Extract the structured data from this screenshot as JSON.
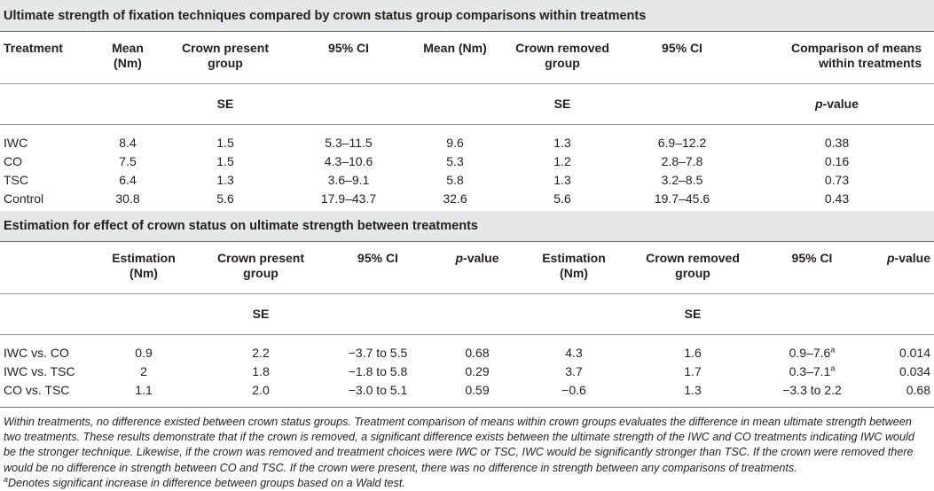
{
  "table1": {
    "title": "Ultimate strength of fixation techniques compared by crown status group comparisons within treatments",
    "headers": {
      "treatment": "Treatment",
      "mean1": "Mean",
      "mean1_unit": "(Nm)",
      "group1_line1": "Crown present",
      "group1_line2": "group",
      "ci1": "95% CI",
      "mean2": "Mean (Nm)",
      "group2_line1": "Crown removed",
      "group2_line2": "group",
      "ci2": "95% CI",
      "comp_line1": "Comparison of means",
      "comp_line2": "within treatments"
    },
    "subheaders": {
      "se1": "SE",
      "se2": "SE",
      "p_italic": "p",
      "p_rest": "-value"
    },
    "rows": [
      {
        "treatment": "IWC",
        "mean1": "8.4",
        "se1": "1.5",
        "ci1": "5.3–11.5",
        "mean2": "9.6",
        "se2": "1.3",
        "ci2": "6.9–12.2",
        "p": "0.38"
      },
      {
        "treatment": "CO",
        "mean1": "7.5",
        "se1": "1.5",
        "ci1": "4.3–10.6",
        "mean2": "5.3",
        "se2": "1.2",
        "ci2": "2.8–7.8",
        "p": "0.16"
      },
      {
        "treatment": "TSC",
        "mean1": "6.4",
        "se1": "1.3",
        "ci1": "3.6–9.1",
        "mean2": "5.8",
        "se2": "1.3",
        "ci2": "3.2–8.5",
        "p": "0.73"
      },
      {
        "treatment": "Control",
        "mean1": "30.8",
        "se1": "5.6",
        "ci1": "17.9–43.7",
        "mean2": "32.6",
        "se2": "5.6",
        "ci2": "19.7–45.6",
        "p": "0.43"
      }
    ]
  },
  "table2": {
    "title": "Estimation for effect of crown status on ultimate strength between treatments",
    "headers": {
      "est1": "Estimation",
      "est1_unit": "(Nm)",
      "group1_line1": "Crown present",
      "group1_line2": "group",
      "ci1": "95% CI",
      "p_italic": "p",
      "p_rest": "-value",
      "est2": "Estimation",
      "est2_unit": "(Nm)",
      "group2_line1": "Crown removed",
      "group2_line2": "group",
      "ci2": "95% CI"
    },
    "subheaders": {
      "se1": "SE",
      "se2": "SE"
    },
    "rows": [
      {
        "comparison": "IWC vs. CO",
        "est1": "0.9",
        "se1": "2.2",
        "ci1": "−3.7 to 5.5",
        "p1": "0.68",
        "est2": "4.3",
        "se2": "1.6",
        "ci2": "0.9–7.6",
        "ci2_sup": "a",
        "p2": "0.014"
      },
      {
        "comparison": "IWC vs. TSC",
        "est1": "2",
        "se1": "1.8",
        "ci1": "−1.8 to 5.8",
        "p1": "0.29",
        "est2": "3.7",
        "se2": "1.7",
        "ci2": "0.3–7.1",
        "ci2_sup": "a",
        "p2": "0.034"
      },
      {
        "comparison": "CO vs. TSC",
        "est1": "1.1",
        "se1": "2.0",
        "ci1": "−3.0 to 5.1",
        "p1": "0.59",
        "est2": "−0.6",
        "se2": "1.3",
        "ci2": "−3.3 to 2.2",
        "ci2_sup": "",
        "p2": "0.68"
      }
    ]
  },
  "notes": {
    "body": "Within treatments, no difference existed between crown status groups. Treatment comparison of means within crown groups evaluates the difference in mean ultimate strength between two treatments. These results demonstrate that if the crown is removed, a significant difference exists between the ultimate strength of the IWC and CO treatments indicating IWC would be the stronger technique. Likewise, if the crown was removed and treatment choices were IWC or TSC, IWC would be significantly stronger than TSC. If the crown were removed there would be no difference in strength between CO and TSC. If the crown were present, there was no difference in strength between any comparisons of treatments.",
    "footnote_mark": "a",
    "footnote": "Denotes significant increase in difference between groups based on a Wald test."
  }
}
